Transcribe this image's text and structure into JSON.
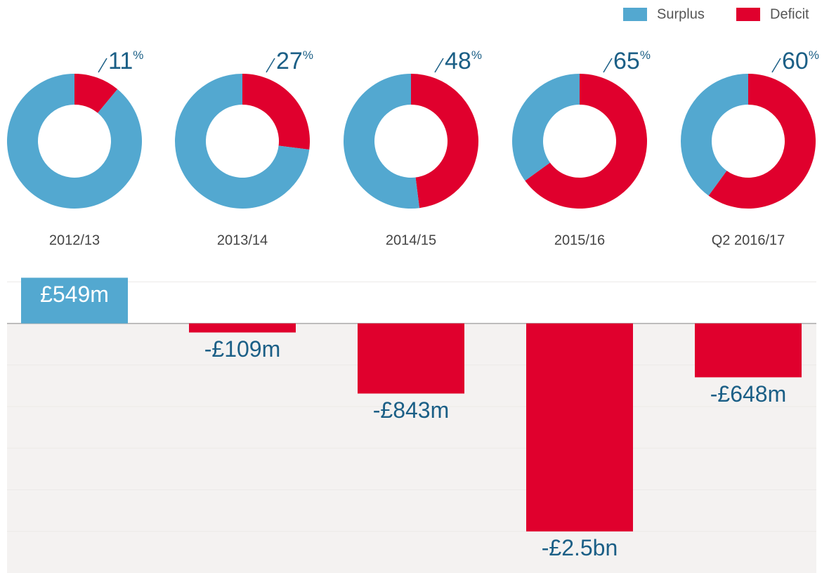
{
  "chart_data": [
    {
      "type": "donut",
      "categories": [
        "2012/13",
        "2013/14",
        "2014/15",
        "2015/16",
        "Q2 2016/17"
      ],
      "unit": "%",
      "series": [
        {
          "name": "Surplus",
          "color": "#53a8d0",
          "values": [
            89,
            73,
            52,
            35,
            40
          ]
        },
        {
          "name": "Deficit",
          "color": "#e0002d",
          "values": [
            11,
            27,
            48,
            65,
            60
          ]
        }
      ],
      "legend": "top-right"
    },
    {
      "type": "bar",
      "categories": [
        "2012/13",
        "2013/14",
        "2014/15",
        "2015/16",
        "Q2 2016/17"
      ],
      "values": [
        549,
        -109,
        -843,
        -2500,
        -648
      ],
      "value_labels": [
        "£549m",
        "-£109m",
        "-£843m",
        "-£2.5bn",
        "-£648m"
      ],
      "positive_color": "#53a8d0",
      "negative_color": "#e0002d",
      "ylim": [
        -3000,
        680
      ],
      "yticks": [
        500,
        0,
        -500,
        -1000,
        -1500,
        -2000,
        -2500
      ],
      "grid": true
    }
  ]
}
